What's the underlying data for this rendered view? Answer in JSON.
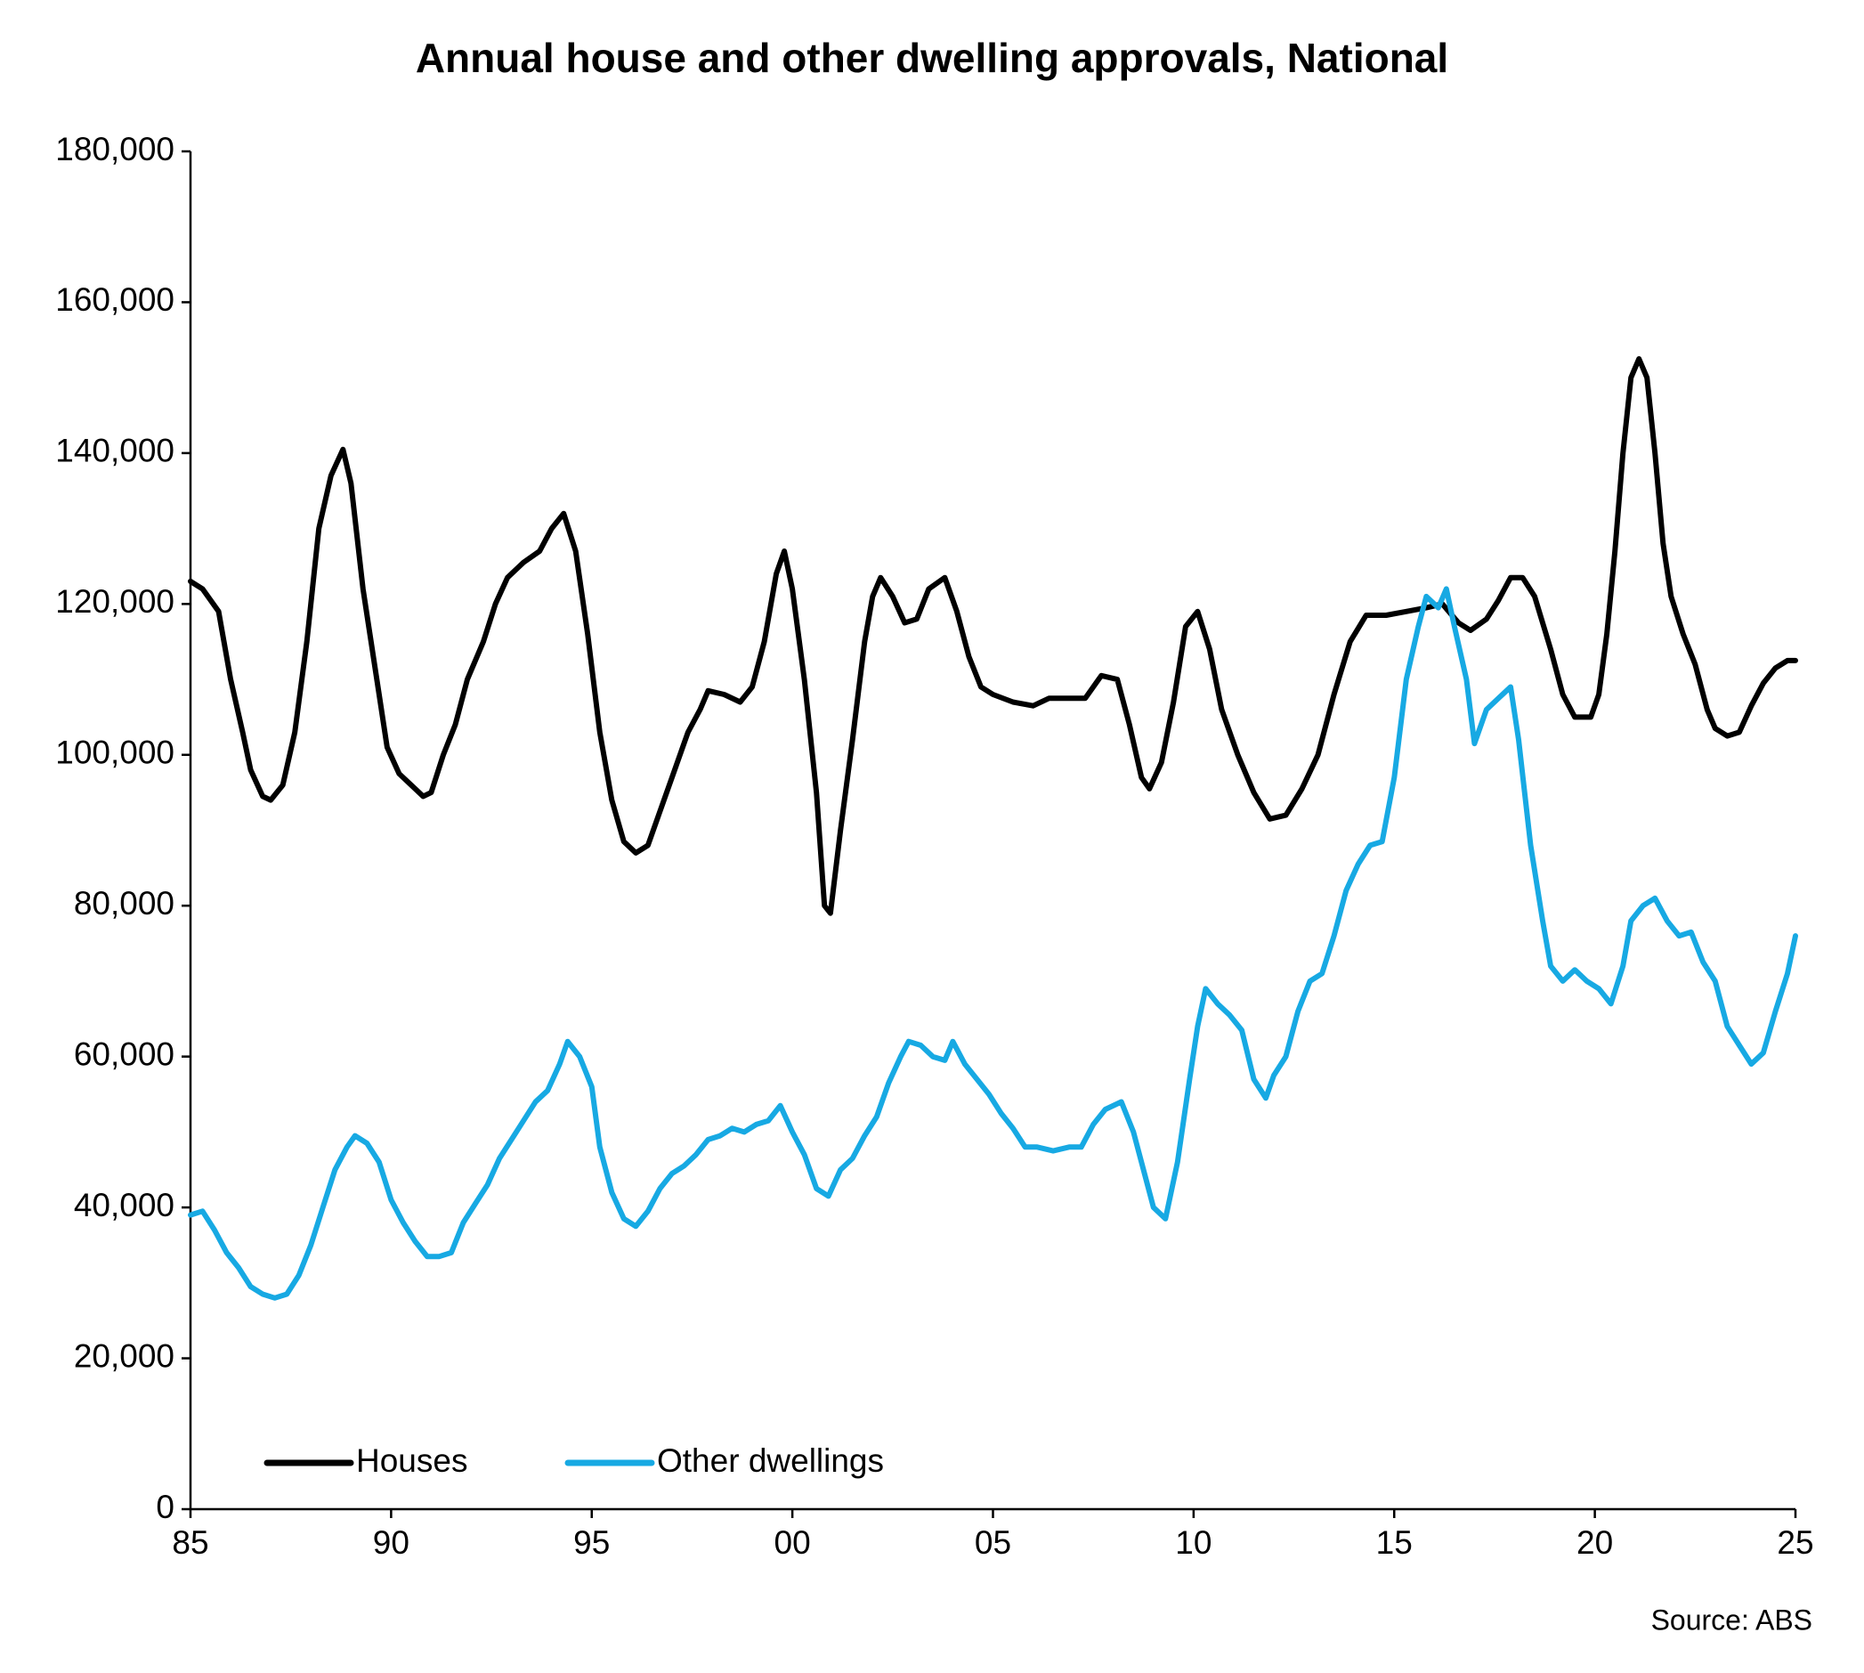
{
  "chart_data": {
    "type": "line",
    "title": "Annual house and other dwelling approvals, National",
    "source": "Source: ABS",
    "xlim": [
      1985,
      2025
    ],
    "xticks": [
      {
        "value": 1985,
        "label": "85"
      },
      {
        "value": 1990,
        "label": "90"
      },
      {
        "value": 1995,
        "label": "95"
      },
      {
        "value": 2000,
        "label": "00"
      },
      {
        "value": 2005,
        "label": "05"
      },
      {
        "value": 2010,
        "label": "10"
      },
      {
        "value": 2015,
        "label": "15"
      },
      {
        "value": 2020,
        "label": "20"
      },
      {
        "value": 2025,
        "label": "25"
      }
    ],
    "ylim": [
      0,
      180000
    ],
    "yticks": [
      0,
      {
        "value": 20000,
        "label": "20,000"
      },
      {
        "value": 40000,
        "label": "40,000"
      },
      {
        "value": 60000,
        "label": "60,000"
      },
      {
        "value": 80000,
        "label": "80,000"
      },
      {
        "value": 100000,
        "label": "100,000"
      },
      {
        "value": 120000,
        "label": "120,000"
      },
      {
        "value": 140000,
        "label": "140,000"
      },
      {
        "value": 160000,
        "label": "160,000"
      },
      {
        "value": 180000,
        "label": "180,000"
      }
    ],
    "series": [
      {
        "name": "Houses",
        "color": "#000000",
        "x": [
          1985.0,
          1985.3,
          1985.7,
          1986.0,
          1986.3,
          1986.5,
          1986.8,
          1987.0,
          1987.3,
          1987.6,
          1987.9,
          1988.2,
          1988.5,
          1988.8,
          1989.0,
          1989.3,
          1989.7,
          1989.9,
          1990.2,
          1990.5,
          1990.8,
          1991.0,
          1991.3,
          1991.6,
          1991.9,
          1992.3,
          1992.6,
          1992.9,
          1993.3,
          1993.7,
          1994.0,
          1994.3,
          1994.6,
          1994.9,
          1995.2,
          1995.5,
          1995.8,
          1996.1,
          1996.4,
          1996.7,
          1997.0,
          1997.4,
          1997.7,
          1997.9,
          1998.3,
          1998.7,
          1999.0,
          1999.3,
          1999.6,
          1999.8,
          2000.0,
          2000.3,
          2000.6,
          2000.8,
          2000.95,
          2001.2,
          2001.5,
          2001.8,
          2002.0,
          2002.2,
          2002.5,
          2002.8,
          2003.1,
          2003.4,
          2003.8,
          2004.1,
          2004.4,
          2004.7,
          2005.0,
          2005.5,
          2006.0,
          2006.4,
          2006.9,
          2007.3,
          2007.7,
          2008.1,
          2008.4,
          2008.7,
          2008.9,
          2009.2,
          2009.5,
          2009.8,
          2010.1,
          2010.4,
          2010.7,
          2011.1,
          2011.5,
          2011.9,
          2012.3,
          2012.7,
          2013.1,
          2013.5,
          2013.9,
          2014.3,
          2014.8,
          2015.3,
          2015.8,
          2016.2,
          2016.6,
          2016.9,
          2017.3,
          2017.6,
          2017.9,
          2018.2,
          2018.5,
          2018.9,
          2019.2,
          2019.5,
          2019.9,
          2020.1,
          2020.3,
          2020.5,
          2020.7,
          2020.9,
          2021.1,
          2021.3,
          2021.5,
          2021.7,
          2021.9,
          2022.2,
          2022.5,
          2022.8,
          2023.0,
          2023.3,
          2023.6,
          2023.9,
          2024.2,
          2024.5,
          2024.8,
          2025.0
        ],
        "values": [
          123000,
          122000,
          119000,
          110000,
          103000,
          98000,
          94500,
          94000,
          96000,
          103000,
          115000,
          130000,
          137000,
          140500,
          136000,
          122000,
          108000,
          101000,
          97500,
          96000,
          94500,
          95000,
          100000,
          104000,
          110000,
          115000,
          120000,
          123500,
          125500,
          127000,
          130000,
          132000,
          127000,
          116000,
          103000,
          94000,
          88500,
          87000,
          88000,
          92500,
          97000,
          103000,
          106000,
          108500,
          108000,
          107000,
          109000,
          115000,
          124000,
          127000,
          122000,
          110000,
          95000,
          80000,
          79000,
          90000,
          102000,
          115000,
          121000,
          123500,
          121000,
          117500,
          118000,
          122000,
          123500,
          119000,
          113000,
          109000,
          108000,
          107000,
          106500,
          107500,
          107500,
          107500,
          110500,
          110000,
          104000,
          97000,
          95500,
          99000,
          107000,
          117000,
          119000,
          114000,
          106000,
          100000,
          95000,
          91500,
          92000,
          95500,
          100000,
          108000,
          115000,
          118500,
          118500,
          119000,
          119500,
          120000,
          117500,
          116500,
          118000,
          120500,
          123500,
          123500,
          121000,
          114000,
          108000,
          105000,
          105000,
          108000,
          116000,
          127000,
          140000,
          150000,
          152500,
          150000,
          140000,
          128000,
          121000,
          116000,
          112000,
          106000,
          103500,
          102500,
          103000,
          106500,
          109500,
          111500,
          112500,
          112500
        ]
      },
      {
        "name": "Other dwellings",
        "color": "#17a9e3",
        "x": [
          1985.0,
          1985.3,
          1985.6,
          1985.9,
          1986.2,
          1986.5,
          1986.8,
          1987.1,
          1987.4,
          1987.7,
          1988.0,
          1988.3,
          1988.6,
          1988.9,
          1989.1,
          1989.4,
          1989.7,
          1990.0,
          1990.3,
          1990.6,
          1990.9,
          1991.2,
          1991.5,
          1991.8,
          1992.1,
          1992.4,
          1992.7,
          1993.0,
          1993.3,
          1993.6,
          1993.9,
          1994.2,
          1994.4,
          1994.7,
          1995.0,
          1995.2,
          1995.5,
          1995.8,
          1996.1,
          1996.4,
          1996.7,
          1997.0,
          1997.3,
          1997.6,
          1997.9,
          1998.2,
          1998.5,
          1998.8,
          1999.1,
          1999.4,
          1999.7,
          2000.0,
          2000.3,
          2000.6,
          2000.9,
          2001.2,
          2001.5,
          2001.8,
          2002.1,
          2002.4,
          2002.7,
          2002.9,
          2003.2,
          2003.5,
          2003.8,
          2004.0,
          2004.3,
          2004.6,
          2004.9,
          2005.2,
          2005.5,
          2005.8,
          2006.1,
          2006.5,
          2006.9,
          2007.2,
          2007.5,
          2007.8,
          2008.2,
          2008.5,
          2008.8,
          2009.0,
          2009.3,
          2009.6,
          2009.9,
          2010.1,
          2010.3,
          2010.6,
          2010.9,
          2011.2,
          2011.5,
          2011.8,
          2012.0,
          2012.3,
          2012.6,
          2012.9,
          2013.2,
          2013.5,
          2013.8,
          2014.1,
          2014.4,
          2014.7,
          2015.0,
          2015.3,
          2015.6,
          2015.8,
          2016.1,
          2016.3,
          2016.5,
          2016.8,
          2017.0,
          2017.3,
          2017.6,
          2017.9,
          2018.1,
          2018.4,
          2018.7,
          2018.9,
          2019.2,
          2019.5,
          2019.8,
          2020.1,
          2020.4,
          2020.7,
          2020.9,
          2021.2,
          2021.5,
          2021.8,
          2022.1,
          2022.4,
          2022.7,
          2023.0,
          2023.3,
          2023.6,
          2023.9,
          2024.2,
          2024.5,
          2024.8,
          2025.0
        ],
        "values": [
          39000,
          39500,
          37000,
          34000,
          32000,
          29500,
          28500,
          28000,
          28500,
          31000,
          35000,
          40000,
          45000,
          48000,
          49500,
          48500,
          46000,
          41000,
          38000,
          35500,
          33500,
          33500,
          34000,
          38000,
          40500,
          43000,
          46500,
          49000,
          51500,
          54000,
          55500,
          59000,
          62000,
          60000,
          56000,
          48000,
          42000,
          38500,
          37500,
          39500,
          42500,
          44500,
          45500,
          47000,
          49000,
          49500,
          50500,
          50000,
          51000,
          51500,
          53500,
          50000,
          47000,
          42500,
          41500,
          45000,
          46500,
          49500,
          52000,
          56500,
          60000,
          62000,
          61500,
          60000,
          59500,
          62000,
          59000,
          57000,
          55000,
          52500,
          50500,
          48000,
          48000,
          47500,
          48000,
          48000,
          51000,
          53000,
          54000,
          50000,
          44000,
          40000,
          38500,
          46000,
          57000,
          64000,
          69000,
          67000,
          65500,
          63500,
          57000,
          54500,
          57500,
          60000,
          66000,
          70000,
          71000,
          76000,
          82000,
          85500,
          88000,
          88500,
          97000,
          110000,
          117000,
          121000,
          119500,
          122000,
          117000,
          110000,
          101500,
          106000,
          107500,
          109000,
          102000,
          88000,
          78000,
          72000,
          70000,
          71500,
          70000,
          69000,
          67000,
          72000,
          78000,
          80000,
          81000,
          78000,
          76000,
          76500,
          72500,
          70000,
          64000,
          61500,
          59000,
          60500,
          66000,
          71000,
          76000
        ]
      }
    ]
  }
}
